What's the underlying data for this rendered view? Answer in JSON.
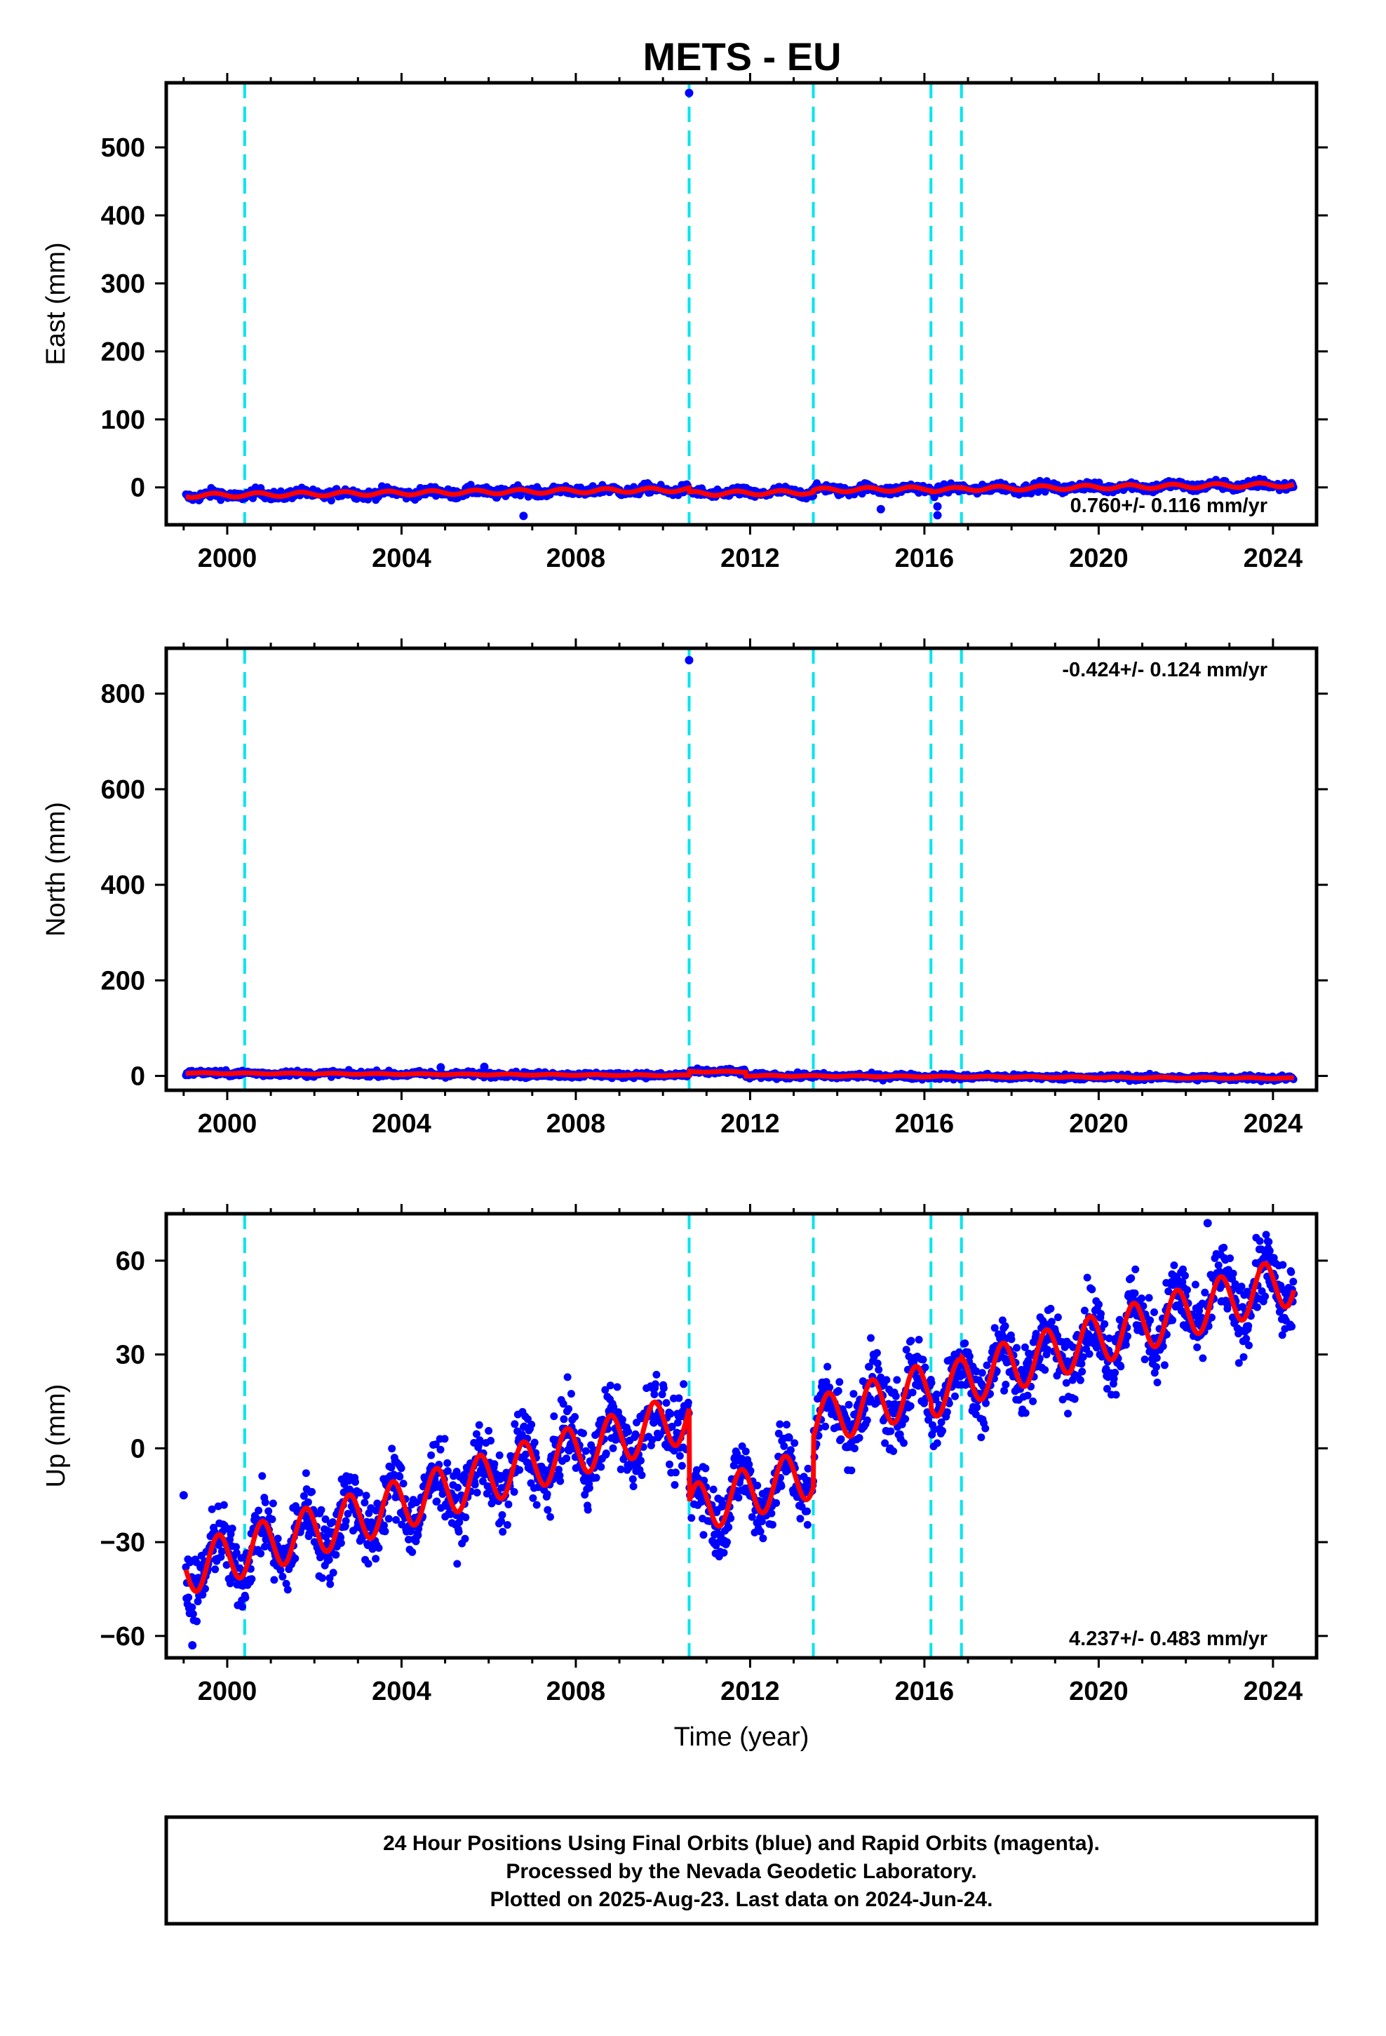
{
  "title": "METS - EU",
  "footer": {
    "lines": [
      "24 Hour Positions Using Final Orbits (blue) and Rapid Orbits (magenta).",
      "Processed by the Nevada Geodetic Laboratory.",
      "Plotted on 2025-Aug-23. Last data on 2024-Jun-24."
    ]
  },
  "colors": {
    "points": "#0000ff",
    "model": "#ff0000",
    "breaks": "#00e5ee",
    "frame": "#000000"
  },
  "chart_data": [
    {
      "type": "scatter",
      "ylabel": "East (mm)",
      "xlabel": "",
      "xlim": [
        1998.6,
        2025.0
      ],
      "ylim": [
        -55,
        595
      ],
      "xticks": [
        2000,
        2004,
        2008,
        2012,
        2016,
        2020,
        2024
      ],
      "xtick_labels": [
        "2000",
        "2004",
        "2008",
        "2012",
        "2016",
        "2020",
        "2024"
      ],
      "yticks": [
        0,
        100,
        200,
        300,
        400,
        500
      ],
      "ytick_labels": [
        "0",
        "100",
        "200",
        "300",
        "400",
        "500"
      ],
      "rate_text": "0.760+/- 0.116 mm/yr",
      "rate_position": "bottom-right",
      "break_lines": [
        2000.4,
        2010.6,
        2013.45,
        2016.15,
        2016.85
      ],
      "model": {
        "t0": 1999.0,
        "offset": -12.0,
        "rate": 0.76,
        "annual_amp": 3.0,
        "phase": 0.45,
        "steps": [
          [
            2010.6,
            -6.0
          ],
          [
            2013.45,
            3.0
          ],
          [
            2016.15,
            -1.5
          ],
          [
            2016.85,
            1.0
          ]
        ]
      },
      "scatter_noise": 3.5,
      "outliers": [
        [
          2010.6,
          580
        ],
        [
          2006.8,
          -42
        ],
        [
          2015.0,
          -32
        ],
        [
          2016.3,
          -28
        ],
        [
          2016.3,
          -41
        ]
      ]
    },
    {
      "type": "scatter",
      "ylabel": "North (mm)",
      "xlabel": "",
      "xlim": [
        1998.6,
        2025.0
      ],
      "ylim": [
        -30,
        895
      ],
      "xticks": [
        2000,
        2004,
        2008,
        2012,
        2016,
        2020,
        2024
      ],
      "xtick_labels": [
        "2000",
        "2004",
        "2008",
        "2012",
        "2016",
        "2020",
        "2024"
      ],
      "yticks": [
        0,
        200,
        400,
        600,
        800
      ],
      "ytick_labels": [
        "0",
        "200",
        "400",
        "600",
        "800"
      ],
      "rate_text": "-0.424+/- 0.124 mm/yr",
      "rate_position": "top-right",
      "break_lines": [
        2000.4,
        2010.6,
        2013.45,
        2016.15,
        2016.85
      ],
      "model": {
        "t0": 1999.0,
        "offset": 6.0,
        "rate": -0.424,
        "annual_amp": 1.0,
        "phase": 0.2,
        "steps": [
          [
            2010.6,
            8.0
          ],
          [
            2011.9,
            -8.0
          ]
        ]
      },
      "scatter_noise": 3.0,
      "outliers": [
        [
          2010.6,
          870
        ],
        [
          2004.9,
          18
        ],
        [
          2005.9,
          19
        ]
      ]
    },
    {
      "type": "scatter",
      "ylabel": "Up (mm)",
      "xlabel": "Time (year)",
      "xlim": [
        1998.6,
        2025.0
      ],
      "ylim": [
        -67,
        75
      ],
      "xticks": [
        2000,
        2004,
        2008,
        2012,
        2016,
        2020,
        2024
      ],
      "xtick_labels": [
        "2000",
        "2004",
        "2008",
        "2012",
        "2016",
        "2020",
        "2024"
      ],
      "yticks": [
        -60,
        -30,
        0,
        30,
        60
      ],
      "ytick_labels": [
        "−60",
        "−30",
        "0",
        "30",
        "60"
      ],
      "rate_text": "4.237+/- 0.483 mm/yr",
      "rate_position": "bottom-right",
      "break_lines": [
        2000.4,
        2010.6,
        2013.45,
        2016.15,
        2016.85
      ],
      "model": {
        "t0": 1999.0,
        "offset": -39.0,
        "rate": 4.237,
        "annual_amp": 8.0,
        "phase": 0.55,
        "steps": [
          [
            2010.6,
            -30.0
          ],
          [
            2013.45,
            16.0
          ],
          [
            2016.15,
            -2.0
          ],
          [
            2016.85,
            1.0
          ]
        ]
      },
      "scatter_noise": 5.5,
      "outliers": [
        [
          2022.5,
          72
        ],
        [
          1999.0,
          -15
        ],
        [
          1999.2,
          -63
        ]
      ]
    }
  ]
}
